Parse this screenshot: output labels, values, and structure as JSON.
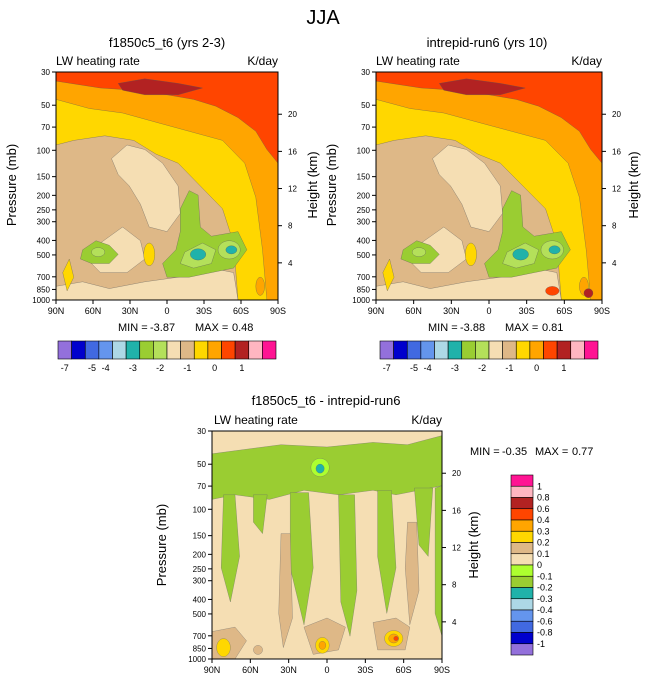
{
  "figure": {
    "title": "JJA"
  },
  "colors": {
    "abs_levels": [
      "#9370db",
      "#0000cd",
      "#4169e1",
      "#6495ed",
      "#add8e6",
      "#20b2aa",
      "#9acd32",
      "#b4e05a",
      "#f5deb3",
      "#deb887",
      "#ffd700",
      "#ffa500",
      "#ff4500",
      "#b22222",
      "#ffb6c1",
      "#ff1493"
    ],
    "diff_levels": [
      "#9370db",
      "#0000cd",
      "#4169e1",
      "#6495ed",
      "#add8e6",
      "#20b2aa",
      "#9acd32",
      "#adff2f",
      "#f5deb3",
      "#deb887",
      "#ffd700",
      "#ffa500",
      "#ff4500",
      "#b22222",
      "#ffb6c1",
      "#ff1493"
    ]
  },
  "chart_data": [
    {
      "type": "heatmap",
      "id": "panel1",
      "title": "f1850c5_t6 (yrs 2-3)",
      "left_label": "LW heating rate",
      "right_label": "K/day",
      "xlabel": "",
      "ylabel": "Pressure (mb)",
      "y2label": "Height (km)",
      "x_ticks": [
        "90N",
        "60N",
        "30N",
        "0",
        "30S",
        "60S",
        "90S"
      ],
      "y_ticks": [
        "30",
        "50",
        "70",
        "100",
        "150",
        "200",
        "250",
        "300",
        "400",
        "500",
        "700",
        "850",
        "1000"
      ],
      "y2_ticks": [
        "20",
        "16",
        "12",
        "8",
        "4"
      ],
      "stats": {
        "min_label": "MIN =",
        "min": "-3.87",
        "max_label": "MAX =",
        "max": "0.48"
      },
      "units": "K/day"
    },
    {
      "type": "heatmap",
      "id": "panel2",
      "title": "intrepid-run6 (yrs 10)",
      "left_label": "LW heating rate",
      "right_label": "K/day",
      "xlabel": "",
      "ylabel": "Pressure (mb)",
      "y2label": "Height (km)",
      "x_ticks": [
        "90N",
        "60N",
        "30N",
        "0",
        "30S",
        "60S",
        "90S"
      ],
      "y_ticks": [
        "30",
        "50",
        "70",
        "100",
        "150",
        "200",
        "250",
        "300",
        "400",
        "500",
        "700",
        "850",
        "1000"
      ],
      "y2_ticks": [
        "20",
        "16",
        "12",
        "8",
        "4"
      ],
      "stats": {
        "min_label": "MIN =",
        "min": "-3.88",
        "max_label": "MAX =",
        "max": "0.81"
      },
      "units": "K/day"
    },
    {
      "type": "heatmap",
      "id": "panel3",
      "title": "f1850c5_t6 - intrepid-run6",
      "left_label": "LW heating rate",
      "right_label": "K/day",
      "xlabel": "",
      "ylabel": "Pressure (mb)",
      "y2label": "Height (km)",
      "x_ticks": [
        "90N",
        "60N",
        "30N",
        "0",
        "30S",
        "60S",
        "90S"
      ],
      "y_ticks": [
        "30",
        "50",
        "70",
        "100",
        "150",
        "200",
        "250",
        "300",
        "400",
        "500",
        "700",
        "850",
        "1000"
      ],
      "y2_ticks": [
        "20",
        "16",
        "12",
        "8",
        "4"
      ],
      "stats": {
        "min_label": "MIN =",
        "min": "-0.35",
        "max_label": "MAX =",
        "max": "0.77"
      },
      "units": "K/day"
    }
  ],
  "colorbars": {
    "abs": {
      "labels": [
        "-7",
        "-5",
        "-4",
        "-3",
        "-2",
        "-1",
        "0",
        "1"
      ]
    },
    "diff": {
      "labels": [
        "1",
        "0.8",
        "0.6",
        "0.4",
        "0.3",
        "0.2",
        "0.1",
        "0",
        "-0.1",
        "-0.2",
        "-0.3",
        "-0.4",
        "-0.6",
        "-0.8",
        "-1"
      ]
    }
  }
}
